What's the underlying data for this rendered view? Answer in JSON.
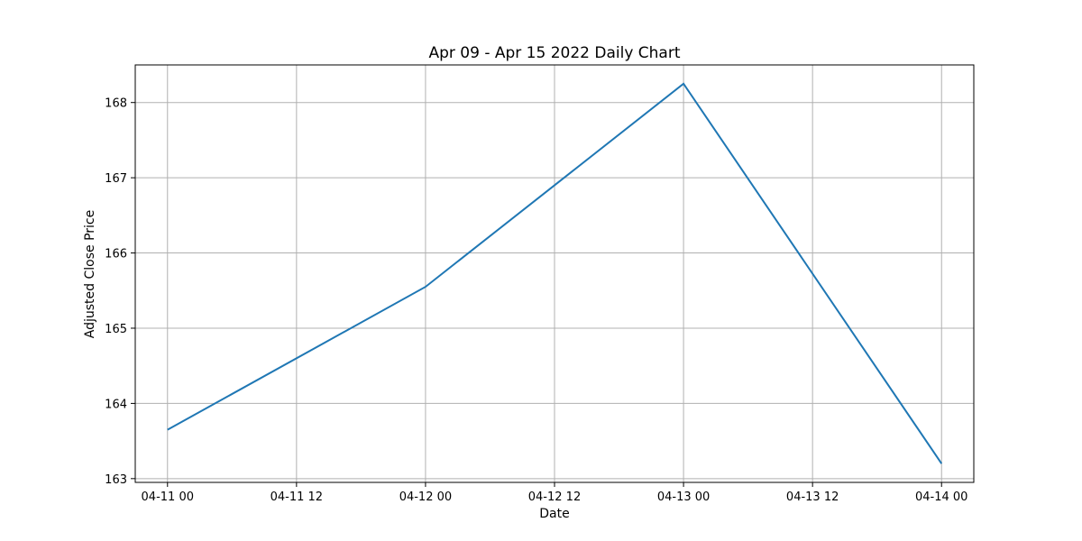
{
  "chart_data": {
    "type": "line",
    "title": "Apr 09 - Apr 15 2022 Daily Chart",
    "xlabel": "Date",
    "ylabel": "Adjusted Close Price",
    "x_range_hours": [
      -3,
      75
    ],
    "ylim": [
      162.95,
      168.5
    ],
    "grid": true,
    "x_ticks": [
      {
        "label": "04-11 00",
        "hours": 0
      },
      {
        "label": "04-11 12",
        "hours": 12
      },
      {
        "label": "04-12 00",
        "hours": 24
      },
      {
        "label": "04-12 12",
        "hours": 36
      },
      {
        "label": "04-13 00",
        "hours": 48
      },
      {
        "label": "04-13 12",
        "hours": 60
      },
      {
        "label": "04-14 00",
        "hours": 72
      }
    ],
    "y_ticks": [
      163,
      164,
      165,
      166,
      167,
      168
    ],
    "series": [
      {
        "color": "#1f77b4",
        "x": [
          "2022-04-11",
          "2022-04-12",
          "2022-04-13",
          "2022-04-14"
        ],
        "hours": [
          0,
          24,
          48,
          72
        ],
        "values": [
          163.65,
          165.55,
          168.25,
          163.2
        ]
      }
    ]
  }
}
